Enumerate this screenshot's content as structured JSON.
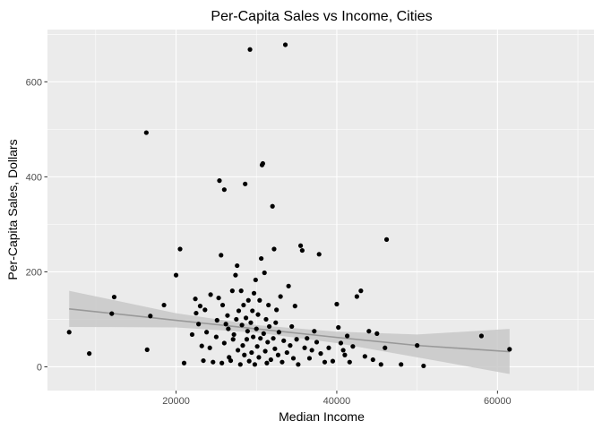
{
  "chart_data": {
    "type": "scatter",
    "title": "Per-Capita Sales vs Income, Cities",
    "xlabel": "Median Income",
    "ylabel": "Per-Capita Sales, Dollars",
    "xlim": [
      4000,
      72000
    ],
    "ylim": [
      -50,
      710
    ],
    "x_ticks": [
      20000,
      40000,
      60000
    ],
    "x_tick_labels": [
      "20000",
      "40000",
      "60000"
    ],
    "y_ticks": [
      0,
      200,
      400,
      600
    ],
    "y_tick_labels": [
      "0",
      "200",
      "400",
      "600"
    ],
    "grid": true,
    "colors": {
      "panel": "#ebebeb",
      "grid_major": "#ffffff",
      "points": "#000000",
      "fit_line": "#999999",
      "ribbon": "#c8c8c8"
    },
    "trend": {
      "method": "linear fit with confidence band",
      "x": [
        6700,
        20000,
        30000,
        40000,
        50000,
        61500
      ],
      "y": [
        122,
        98,
        80,
        62,
        45,
        32
      ],
      "lower": [
        84,
        83,
        72,
        50,
        20,
        -15
      ],
      "upper": [
        160,
        113,
        88,
        74,
        68,
        80
      ]
    },
    "points": [
      [
        6700,
        73
      ],
      [
        9200,
        28
      ],
      [
        12000,
        112
      ],
      [
        12300,
        147
      ],
      [
        16300,
        493
      ],
      [
        16400,
        36
      ],
      [
        16800,
        107
      ],
      [
        18500,
        130
      ],
      [
        20000,
        193
      ],
      [
        20500,
        248
      ],
      [
        21000,
        8
      ],
      [
        22000,
        68
      ],
      [
        22400,
        143
      ],
      [
        22500,
        113
      ],
      [
        22800,
        90
      ],
      [
        23000,
        128
      ],
      [
        23200,
        44
      ],
      [
        23400,
        13
      ],
      [
        23600,
        120
      ],
      [
        23800,
        73
      ],
      [
        24200,
        40
      ],
      [
        24300,
        152
      ],
      [
        24600,
        10
      ],
      [
        25000,
        63
      ],
      [
        25100,
        98
      ],
      [
        25300,
        145
      ],
      [
        25400,
        392
      ],
      [
        25600,
        235
      ],
      [
        25700,
        8
      ],
      [
        25800,
        130
      ],
      [
        26000,
        373
      ],
      [
        26000,
        50
      ],
      [
        26200,
        90
      ],
      [
        26400,
        108
      ],
      [
        26500,
        80
      ],
      [
        26600,
        20
      ],
      [
        26800,
        13
      ],
      [
        27000,
        160
      ],
      [
        27100,
        58
      ],
      [
        27200,
        68
      ],
      [
        27400,
        193
      ],
      [
        27500,
        100
      ],
      [
        27600,
        213
      ],
      [
        27700,
        35
      ],
      [
        27800,
        118
      ],
      [
        28000,
        5
      ],
      [
        28100,
        160
      ],
      [
        28200,
        88
      ],
      [
        28300,
        45
      ],
      [
        28400,
        130
      ],
      [
        28500,
        25
      ],
      [
        28600,
        385
      ],
      [
        28700,
        103
      ],
      [
        28800,
        58
      ],
      [
        28900,
        75
      ],
      [
        29000,
        140
      ],
      [
        29100,
        12
      ],
      [
        29200,
        668
      ],
      [
        29300,
        93
      ],
      [
        29400,
        30
      ],
      [
        29500,
        118
      ],
      [
        29600,
        63
      ],
      [
        29700,
        155
      ],
      [
        29800,
        5
      ],
      [
        29900,
        183
      ],
      [
        30000,
        80
      ],
      [
        30100,
        43
      ],
      [
        30200,
        110
      ],
      [
        30300,
        20
      ],
      [
        30400,
        140
      ],
      [
        30500,
        60
      ],
      [
        30600,
        228
      ],
      [
        30700,
        425
      ],
      [
        30800,
        428
      ],
      [
        30900,
        70
      ],
      [
        31000,
        198
      ],
      [
        31100,
        33
      ],
      [
        31200,
        100
      ],
      [
        31300,
        8
      ],
      [
        31400,
        52
      ],
      [
        31500,
        130
      ],
      [
        31600,
        85
      ],
      [
        31800,
        15
      ],
      [
        32000,
        338
      ],
      [
        32100,
        60
      ],
      [
        32200,
        248
      ],
      [
        32300,
        38
      ],
      [
        32400,
        93
      ],
      [
        32500,
        120
      ],
      [
        32700,
        25
      ],
      [
        32800,
        73
      ],
      [
        33000,
        148
      ],
      [
        33200,
        10
      ],
      [
        33400,
        55
      ],
      [
        33600,
        678
      ],
      [
        33800,
        30
      ],
      [
        34000,
        170
      ],
      [
        34200,
        45
      ],
      [
        34400,
        85
      ],
      [
        34600,
        18
      ],
      [
        34800,
        128
      ],
      [
        35000,
        58
      ],
      [
        35200,
        5
      ],
      [
        35500,
        255
      ],
      [
        35700,
        245
      ],
      [
        36000,
        40
      ],
      [
        36300,
        60
      ],
      [
        36600,
        18
      ],
      [
        36900,
        35
      ],
      [
        37200,
        75
      ],
      [
        37500,
        52
      ],
      [
        37800,
        237
      ],
      [
        38000,
        28
      ],
      [
        38500,
        10
      ],
      [
        39000,
        40
      ],
      [
        39500,
        12
      ],
      [
        40000,
        132
      ],
      [
        40200,
        83
      ],
      [
        40500,
        50
      ],
      [
        40800,
        35
      ],
      [
        41000,
        25
      ],
      [
        41300,
        65
      ],
      [
        41600,
        10
      ],
      [
        42000,
        43
      ],
      [
        42500,
        148
      ],
      [
        43000,
        160
      ],
      [
        43500,
        22
      ],
      [
        44000,
        75
      ],
      [
        44500,
        15
      ],
      [
        45000,
        70
      ],
      [
        45500,
        5
      ],
      [
        46000,
        40
      ],
      [
        46200,
        268
      ],
      [
        48000,
        5
      ],
      [
        50000,
        45
      ],
      [
        50800,
        2
      ],
      [
        58000,
        65
      ],
      [
        61500,
        37
      ]
    ]
  }
}
